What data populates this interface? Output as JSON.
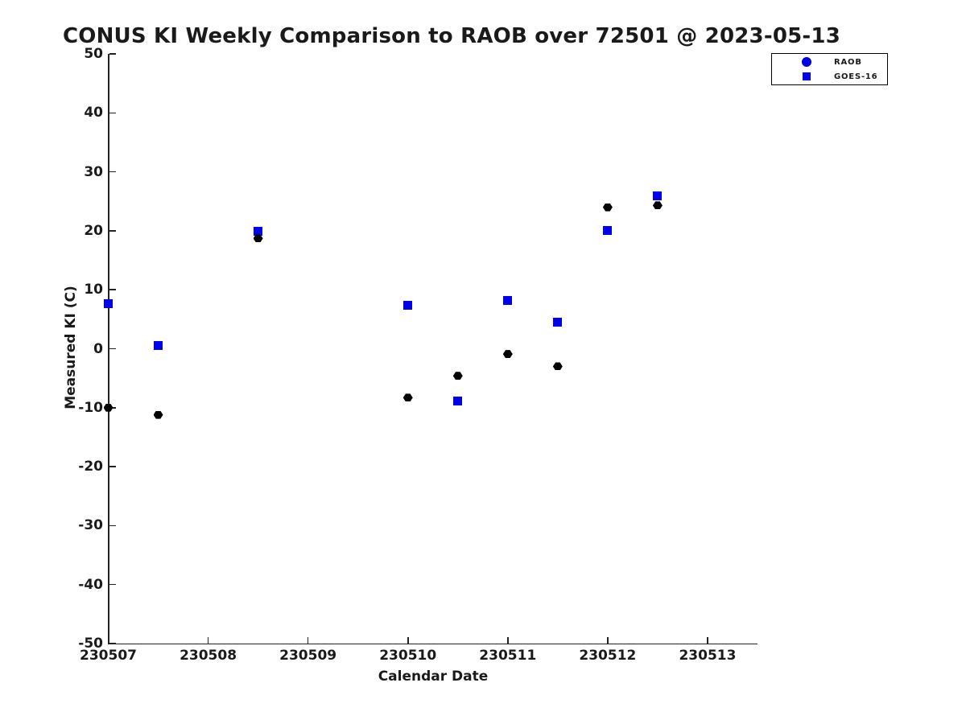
{
  "figure": {
    "background_color": "#ffffff",
    "text_color": "#1a1a1a"
  },
  "chart_data": {
    "type": "scatter",
    "title": "CONUS KI Weekly Comparison to RAOB over 72501 @ 2023-05-13",
    "xlabel": "Calendar Date",
    "ylabel": "Measured KI (C)",
    "xlim": [
      230507,
      230513.5
    ],
    "ylim": [
      -50,
      50
    ],
    "x_ticks": [
      230507,
      230508,
      230509,
      230510,
      230511,
      230512,
      230513
    ],
    "x_tick_labels": [
      "230507",
      "230508",
      "230509",
      "230510",
      "230511",
      "230512",
      "230513"
    ],
    "y_ticks": [
      50,
      40,
      30,
      20,
      10,
      0,
      -10,
      -20,
      -30,
      -40,
      -50
    ],
    "y_tick_labels": [
      "50",
      "40",
      "30",
      "20",
      "10",
      "0",
      "-10",
      "-20",
      "-30",
      "-40",
      "-50"
    ],
    "grid": false,
    "legend": {
      "position": "top-right",
      "entries": [
        {
          "label": "RAOB",
          "marker": "circle",
          "color": "#0000ee"
        },
        {
          "label": "GOES-16",
          "marker": "square",
          "color": "#0000ee"
        }
      ]
    },
    "series": [
      {
        "name": "RAOB",
        "marker": "hexagon",
        "color": "#000000",
        "points": [
          [
            230507.0,
            -10.0
          ],
          [
            230507.5,
            -11.2
          ],
          [
            230508.5,
            18.7
          ],
          [
            230510.0,
            -8.3
          ],
          [
            230510.5,
            -4.6
          ],
          [
            230511.0,
            -0.9
          ],
          [
            230511.5,
            -3.0
          ],
          [
            230512.0,
            24.0
          ],
          [
            230512.5,
            24.3
          ]
        ]
      },
      {
        "name": "GOES-16",
        "marker": "square",
        "color": "#0000ee",
        "points": [
          [
            230507.0,
            7.6
          ],
          [
            230507.5,
            0.5
          ],
          [
            230508.5,
            19.9
          ],
          [
            230510.0,
            7.3
          ],
          [
            230510.5,
            -8.9
          ],
          [
            230511.0,
            8.2
          ],
          [
            230511.5,
            4.5
          ],
          [
            230512.0,
            20.1
          ],
          [
            230512.5,
            25.9
          ]
        ]
      }
    ]
  }
}
